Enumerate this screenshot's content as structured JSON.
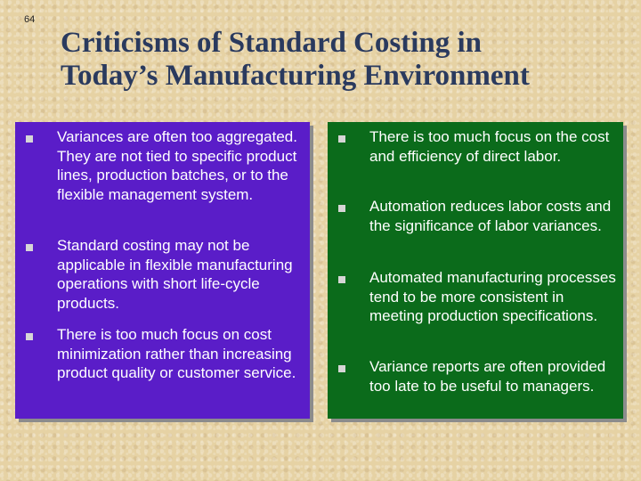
{
  "slide": {
    "number": "64",
    "title_line1": "Criticisms of Standard Costing in",
    "title_line2": "Today’s Manufacturing Environment"
  },
  "left_panel": {
    "color": "#5a1dc8",
    "items": [
      "Variances are often too aggregated.  They are not tied to specific product lines, production batches, or to the flexible management system.",
      "Standard costing may not be applicable in flexible manufacturing operations with short life-cycle products.",
      "There is too much focus on cost minimization rather than increasing product quality or customer service."
    ]
  },
  "right_panel": {
    "color": "#0b6b1b",
    "items": [
      "There is too much focus on the cost and efficiency of direct labor.",
      "Automation reduces labor costs and the significance of labor variances.",
      "Automated manufacturing processes tend to be more consistent in meeting production specifications.",
      "Variance reports are often provided too late to be useful to managers."
    ]
  }
}
